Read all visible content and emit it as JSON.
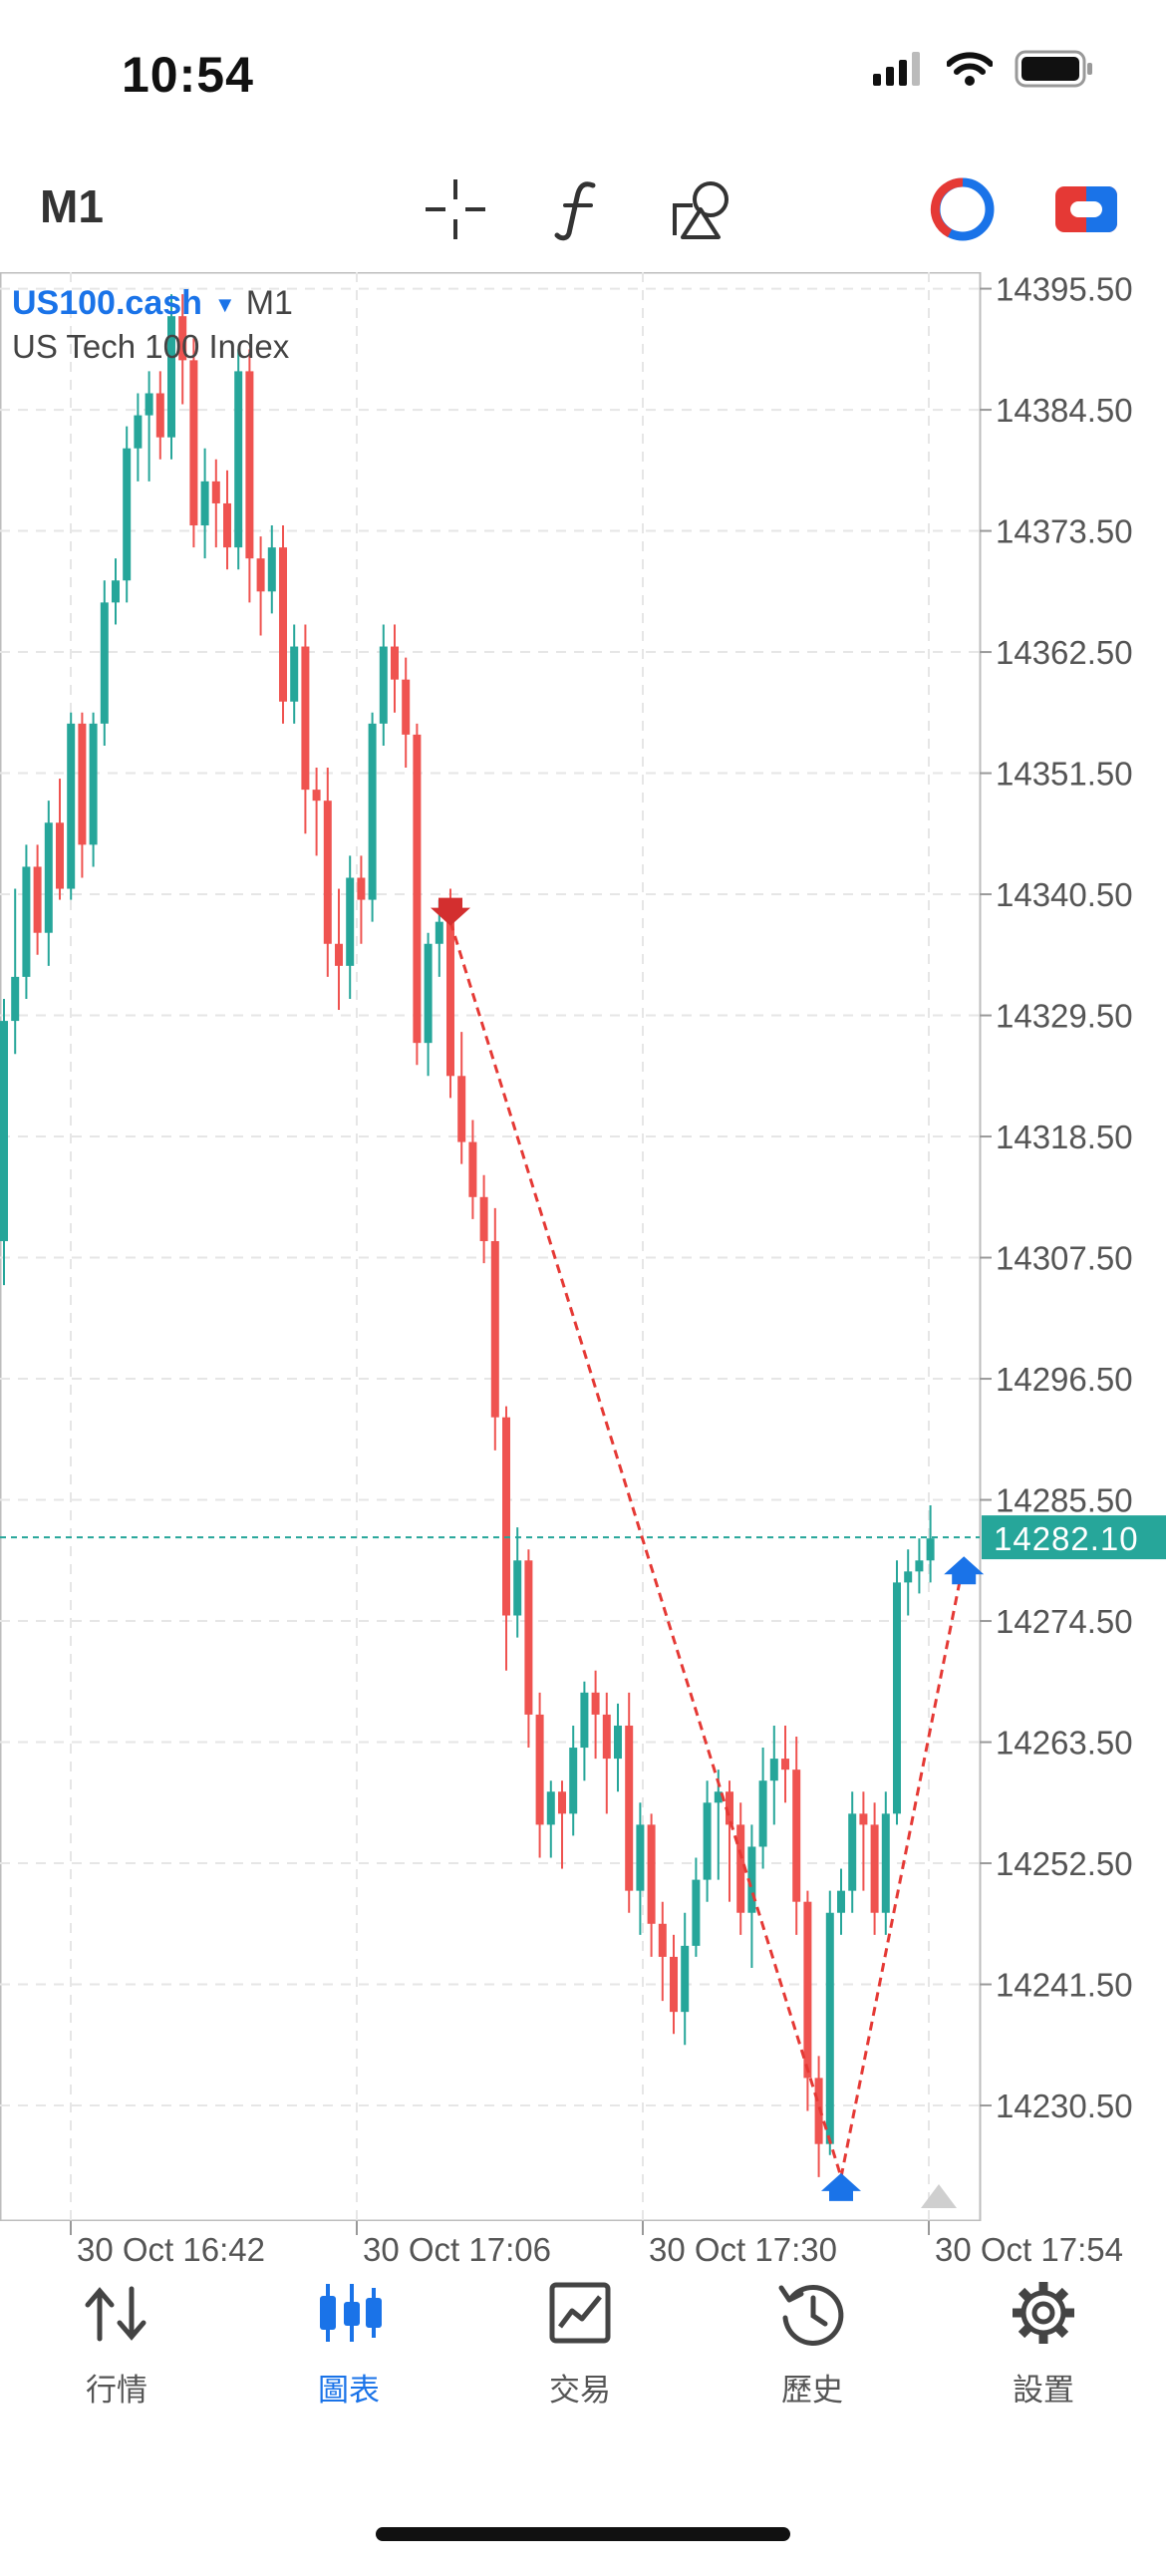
{
  "status_bar": {
    "time": "10:54"
  },
  "toolbar": {
    "timeframe": "M1",
    "icons": [
      "crosshair-icon",
      "indicator-f-icon",
      "objects-icon",
      "one-click-trading-icon",
      "toggle-icon"
    ]
  },
  "chart": {
    "symbol": "US100.cash",
    "timeframe": "M1",
    "description": "US Tech 100 Index",
    "current_price": "14282.10",
    "colors": {
      "bull": "#26a69a",
      "bear": "#ef5350",
      "trade_line": "#e53935",
      "buy_arrow": "#1a73e8",
      "sell_arrow": "#d32f2f"
    }
  },
  "chart_data": {
    "type": "candlestick",
    "y_axis_ticks": [
      "14395.50",
      "14384.50",
      "14373.50",
      "14362.50",
      "14351.50",
      "14340.50",
      "14329.50",
      "14318.50",
      "14307.50",
      "14296.50",
      "14285.50",
      "14274.50",
      "14263.50",
      "14252.50",
      "14241.50",
      "14230.50"
    ],
    "x_axis_ticks": [
      "30 Oct 16:42",
      "30 Oct 17:06",
      "30 Oct 17:30",
      "30 Oct 17:54"
    ],
    "ylim": [
      14220.0,
      14397.0
    ],
    "grid": true,
    "candles": [
      [
        14309,
        14329,
        14305,
        14331
      ],
      [
        14329,
        14333,
        14326,
        14341
      ],
      [
        14333,
        14343,
        14331,
        14345
      ],
      [
        14343,
        14337,
        14335,
        14345
      ],
      [
        14337,
        14347,
        14334,
        14349
      ],
      [
        14347,
        14341,
        14340,
        14351
      ],
      [
        14341,
        14356,
        14340,
        14357
      ],
      [
        14356,
        14345,
        14342,
        14357
      ],
      [
        14345,
        14356,
        14343,
        14357
      ],
      [
        14356,
        14367,
        14354,
        14369
      ],
      [
        14367,
        14369,
        14365,
        14371
      ],
      [
        14369,
        14381,
        14367,
        14383
      ],
      [
        14381,
        14384,
        14378,
        14386
      ],
      [
        14384,
        14386,
        14378,
        14388
      ],
      [
        14386,
        14382,
        14380,
        14388
      ],
      [
        14382,
        14393,
        14380,
        14395
      ],
      [
        14393,
        14389,
        14385,
        14395
      ],
      [
        14389,
        14374,
        14372,
        14391
      ],
      [
        14374,
        14378,
        14371,
        14381
      ],
      [
        14378,
        14376,
        14372,
        14380
      ],
      [
        14376,
        14372,
        14370,
        14379
      ],
      [
        14372,
        14388,
        14370,
        14390
      ],
      [
        14388,
        14371,
        14367,
        14390
      ],
      [
        14371,
        14368,
        14364,
        14373
      ],
      [
        14368,
        14372,
        14366,
        14374
      ],
      [
        14372,
        14358,
        14356,
        14374
      ],
      [
        14358,
        14363,
        14356,
        14365
      ],
      [
        14363,
        14350,
        14346,
        14365
      ],
      [
        14350,
        14349,
        14344,
        14352
      ],
      [
        14349,
        14336,
        14333,
        14352
      ],
      [
        14336,
        14334,
        14330,
        14341
      ],
      [
        14334,
        14342,
        14331,
        14344
      ],
      [
        14342,
        14340,
        14336,
        14344
      ],
      [
        14340,
        14356,
        14338,
        14357
      ],
      [
        14356,
        14363,
        14354,
        14365
      ],
      [
        14363,
        14360,
        14357,
        14365
      ],
      [
        14360,
        14355,
        14352,
        14362
      ],
      [
        14355,
        14327,
        14325,
        14356
      ],
      [
        14327,
        14336,
        14324,
        14337
      ],
      [
        14336,
        14338,
        14333,
        14340
      ],
      [
        14338,
        14324,
        14322,
        14341
      ],
      [
        14324,
        14318,
        14316,
        14328
      ],
      [
        14318,
        14313,
        14311,
        14320
      ],
      [
        14313,
        14309,
        14307,
        14315
      ],
      [
        14309,
        14293,
        14290,
        14312
      ],
      [
        14293,
        14275,
        14270,
        14294
      ],
      [
        14275,
        14280,
        14273,
        14283
      ],
      [
        14280,
        14266,
        14263,
        14281
      ],
      [
        14266,
        14256,
        14253,
        14268
      ],
      [
        14256,
        14259,
        14253,
        14260
      ],
      [
        14259,
        14257,
        14252,
        14260
      ],
      [
        14257,
        14263,
        14255,
        14265
      ],
      [
        14263,
        14268,
        14260,
        14269
      ],
      [
        14268,
        14266,
        14262,
        14270
      ],
      [
        14266,
        14262,
        14257,
        14268
      ],
      [
        14262,
        14265,
        14259,
        14267
      ],
      [
        14265,
        14250,
        14248,
        14268
      ],
      [
        14250,
        14256,
        14246,
        14258
      ],
      [
        14256,
        14247,
        14244,
        14257
      ],
      [
        14247,
        14244,
        14240,
        14249
      ],
      [
        14244,
        14239,
        14237,
        14246
      ],
      [
        14239,
        14245,
        14236,
        14248
      ],
      [
        14245,
        14251,
        14244,
        14253
      ],
      [
        14251,
        14258,
        14249,
        14260
      ],
      [
        14258,
        14259,
        14251,
        14261
      ],
      [
        14259,
        14256,
        14249,
        14260
      ],
      [
        14256,
        14248,
        14246,
        14258
      ],
      [
        14248,
        14254,
        14243,
        14256
      ],
      [
        14254,
        14260,
        14252,
        14263
      ],
      [
        14260,
        14262,
        14256,
        14265
      ],
      [
        14262,
        14261,
        14258,
        14265
      ],
      [
        14261,
        14249,
        14246,
        14264
      ],
      [
        14249,
        14233,
        14230,
        14250
      ],
      [
        14233,
        14227,
        14224,
        14235
      ],
      [
        14227,
        14248,
        14226,
        14250
      ],
      [
        14248,
        14250,
        14246,
        14252
      ],
      [
        14250,
        14257,
        14248,
        14259
      ],
      [
        14257,
        14256,
        14250,
        14259
      ],
      [
        14256,
        14248,
        14246,
        14258
      ],
      [
        14248,
        14257,
        14246,
        14259
      ],
      [
        14257,
        14278,
        14256,
        14280
      ],
      [
        14278,
        14279,
        14275,
        14281
      ],
      [
        14279,
        14280,
        14277,
        14282
      ],
      [
        14280,
        14282,
        14278,
        14285
      ]
    ],
    "trades": [
      {
        "side": "sell",
        "bar": 40,
        "price": 14338
      },
      {
        "side": "buy",
        "bar": 75,
        "price": 14224
      },
      {
        "side": "buy",
        "bar": 86,
        "price": 14280
      }
    ]
  },
  "tabs": [
    {
      "label": "行情",
      "icon": "quotes-icon",
      "active": false
    },
    {
      "label": "圖表",
      "icon": "chart-icon",
      "active": true
    },
    {
      "label": "交易",
      "icon": "trade-icon",
      "active": false
    },
    {
      "label": "歷史",
      "icon": "history-icon",
      "active": false
    },
    {
      "label": "設置",
      "icon": "settings-icon",
      "active": false
    }
  ]
}
